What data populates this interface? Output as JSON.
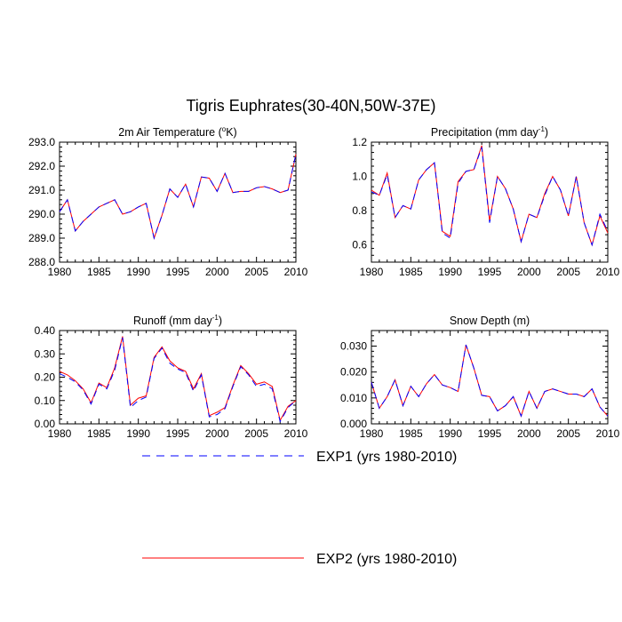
{
  "figure": {
    "title": "Tigris Euphrates(30-40N,50W-37E)",
    "legend": [
      {
        "label": "EXP1 (yrs 1980-2010)",
        "color": "#0000ff",
        "dash": "dashed"
      },
      {
        "label": "EXP2 (yrs 1980-2010)",
        "color": "#ff0000",
        "dash": "solid"
      }
    ]
  },
  "chart_data": [
    {
      "type": "line",
      "title": "2m Air Temperature (",
      "title_sup": "o",
      "title_tail": "K)",
      "xlim": [
        1980,
        2010
      ],
      "ylim": [
        288.0,
        293.0
      ],
      "xticks": [
        "1980",
        "1985",
        "1990",
        "1995",
        "2000",
        "2005",
        "2010"
      ],
      "yticks": [
        "288.0",
        "289.0",
        "290.0",
        "291.0",
        "292.0",
        "293.0"
      ],
      "x": [
        1980,
        1981,
        1982,
        1983,
        1984,
        1985,
        1986,
        1987,
        1988,
        1989,
        1990,
        1991,
        1992,
        1993,
        1994,
        1995,
        1996,
        1997,
        1998,
        1999,
        2000,
        2001,
        2002,
        2003,
        2004,
        2005,
        2006,
        2007,
        2008,
        2009,
        2010
      ],
      "series": [
        {
          "name": "EXP1 (yrs 1980-2010)",
          "values": [
            290.1,
            290.6,
            289.3,
            289.7,
            290.0,
            290.3,
            290.45,
            290.6,
            290.0,
            290.1,
            290.3,
            290.45,
            289.0,
            289.95,
            291.05,
            290.7,
            291.25,
            290.3,
            291.55,
            291.5,
            290.95,
            291.7,
            290.9,
            290.95,
            290.95,
            291.1,
            291.15,
            291.05,
            290.9,
            291.0,
            292.5
          ]
        },
        {
          "name": "EXP2 (yrs 1980-2010)",
          "values": [
            290.1,
            290.6,
            289.3,
            289.7,
            290.0,
            290.3,
            290.45,
            290.6,
            290.0,
            290.1,
            290.3,
            290.45,
            289.0,
            289.95,
            291.05,
            290.7,
            291.25,
            290.3,
            291.55,
            291.5,
            290.95,
            291.7,
            290.9,
            290.95,
            290.95,
            291.1,
            291.15,
            291.05,
            290.9,
            291.0,
            292.5
          ]
        }
      ]
    },
    {
      "type": "line",
      "title": "Precipitation (mm day",
      "title_sup": "-1",
      "title_tail": ")",
      "xlim": [
        1980,
        2010
      ],
      "ylim": [
        0.5,
        1.2
      ],
      "xticks": [
        "1980",
        "1985",
        "1990",
        "1995",
        "2000",
        "2005",
        "2010"
      ],
      "yticks": [
        "0.6",
        "0.8",
        "1.0",
        "1.2"
      ],
      "x": [
        1980,
        1981,
        1982,
        1983,
        1984,
        1985,
        1986,
        1987,
        1988,
        1989,
        1990,
        1991,
        1992,
        1993,
        1994,
        1995,
        1996,
        1997,
        1998,
        1999,
        2000,
        2001,
        2002,
        2003,
        2004,
        2005,
        2006,
        2007,
        2008,
        2009,
        2010
      ],
      "series": [
        {
          "name": "EXP1 (yrs 1980-2010)",
          "values": [
            0.91,
            0.89,
            1.01,
            0.76,
            0.83,
            0.81,
            0.98,
            1.04,
            1.08,
            0.67,
            0.64,
            0.96,
            1.03,
            1.04,
            1.17,
            0.73,
            1.0,
            0.93,
            0.81,
            0.62,
            0.78,
            0.76,
            0.89,
            1.0,
            0.92,
            0.77,
            1.0,
            0.73,
            0.6,
            0.78,
            0.68
          ]
        },
        {
          "name": "EXP2 (yrs 1980-2010)",
          "values": [
            0.92,
            0.89,
            1.02,
            0.76,
            0.83,
            0.81,
            0.98,
            1.04,
            1.08,
            0.68,
            0.65,
            0.97,
            1.03,
            1.04,
            1.18,
            0.74,
            1.0,
            0.93,
            0.81,
            0.62,
            0.78,
            0.76,
            0.9,
            1.0,
            0.92,
            0.77,
            1.0,
            0.73,
            0.6,
            0.77,
            0.67
          ]
        }
      ]
    },
    {
      "type": "line",
      "title": "Runoff (mm day",
      "title_sup": "-1",
      "title_tail": ")",
      "xlim": [
        1980,
        2010
      ],
      "ylim": [
        0.0,
        0.4
      ],
      "xticks": [
        "1980",
        "1985",
        "1990",
        "1995",
        "2000",
        "2005",
        "2010"
      ],
      "yticks": [
        "0.00",
        "0.10",
        "0.20",
        "0.30",
        "0.40"
      ],
      "x": [
        1980,
        1981,
        1982,
        1983,
        1984,
        1985,
        1986,
        1987,
        1988,
        1989,
        1990,
        1991,
        1992,
        1993,
        1994,
        1995,
        1996,
        1997,
        1998,
        1999,
        2000,
        2001,
        2002,
        2003,
        2004,
        2005,
        2006,
        2007,
        2008,
        2009,
        2010
      ],
      "series": [
        {
          "name": "EXP1 (yrs 1980-2010)",
          "values": [
            0.215,
            0.2,
            0.18,
            0.145,
            0.085,
            0.17,
            0.15,
            0.23,
            0.37,
            0.07,
            0.1,
            0.115,
            0.28,
            0.325,
            0.26,
            0.235,
            0.22,
            0.14,
            0.21,
            0.03,
            0.04,
            0.065,
            0.16,
            0.245,
            0.21,
            0.16,
            0.17,
            0.15,
            0.01,
            0.07,
            0.1
          ]
        },
        {
          "name": "EXP2 (yrs 1980-2010)",
          "values": [
            0.225,
            0.21,
            0.185,
            0.15,
            0.09,
            0.175,
            0.155,
            0.24,
            0.375,
            0.08,
            0.11,
            0.12,
            0.285,
            0.33,
            0.27,
            0.24,
            0.225,
            0.15,
            0.215,
            0.035,
            0.05,
            0.07,
            0.165,
            0.25,
            0.215,
            0.17,
            0.18,
            0.16,
            0.015,
            0.075,
            0.1
          ]
        }
      ]
    },
    {
      "type": "line",
      "title": "Snow Depth (m)",
      "title_sup": "",
      "title_tail": "",
      "xlim": [
        1980,
        2010
      ],
      "ylim": [
        0.0,
        0.036
      ],
      "xticks": [
        "1980",
        "1985",
        "1990",
        "1995",
        "2000",
        "2005",
        "2010"
      ],
      "yticks": [
        "0.000",
        "0.010",
        "0.020",
        "0.030"
      ],
      "x": [
        1980,
        1981,
        1982,
        1983,
        1984,
        1985,
        1986,
        1987,
        1988,
        1989,
        1990,
        1991,
        1992,
        1993,
        1994,
        1995,
        1996,
        1997,
        1998,
        1999,
        2000,
        2001,
        2002,
        2003,
        2004,
        2005,
        2006,
        2007,
        2008,
        2009,
        2010
      ],
      "series": [
        {
          "name": "EXP1 (yrs 1980-2010)",
          "values": [
            0.016,
            0.006,
            0.0105,
            0.017,
            0.007,
            0.0145,
            0.0105,
            0.0155,
            0.019,
            0.015,
            0.014,
            0.0125,
            0.0305,
            0.0215,
            0.011,
            0.0105,
            0.005,
            0.007,
            0.0105,
            0.003,
            0.0125,
            0.006,
            0.0125,
            0.0135,
            0.0125,
            0.0115,
            0.0115,
            0.0105,
            0.0135,
            0.0065,
            0.003
          ]
        },
        {
          "name": "EXP2 (yrs 1980-2010)",
          "values": [
            0.016,
            0.006,
            0.0105,
            0.017,
            0.007,
            0.0145,
            0.0105,
            0.0155,
            0.019,
            0.015,
            0.014,
            0.0125,
            0.0305,
            0.0215,
            0.011,
            0.0105,
            0.005,
            0.007,
            0.0105,
            0.003,
            0.0125,
            0.006,
            0.0125,
            0.0135,
            0.0125,
            0.0115,
            0.0115,
            0.0105,
            0.0135,
            0.0065,
            0.003
          ]
        }
      ]
    }
  ]
}
